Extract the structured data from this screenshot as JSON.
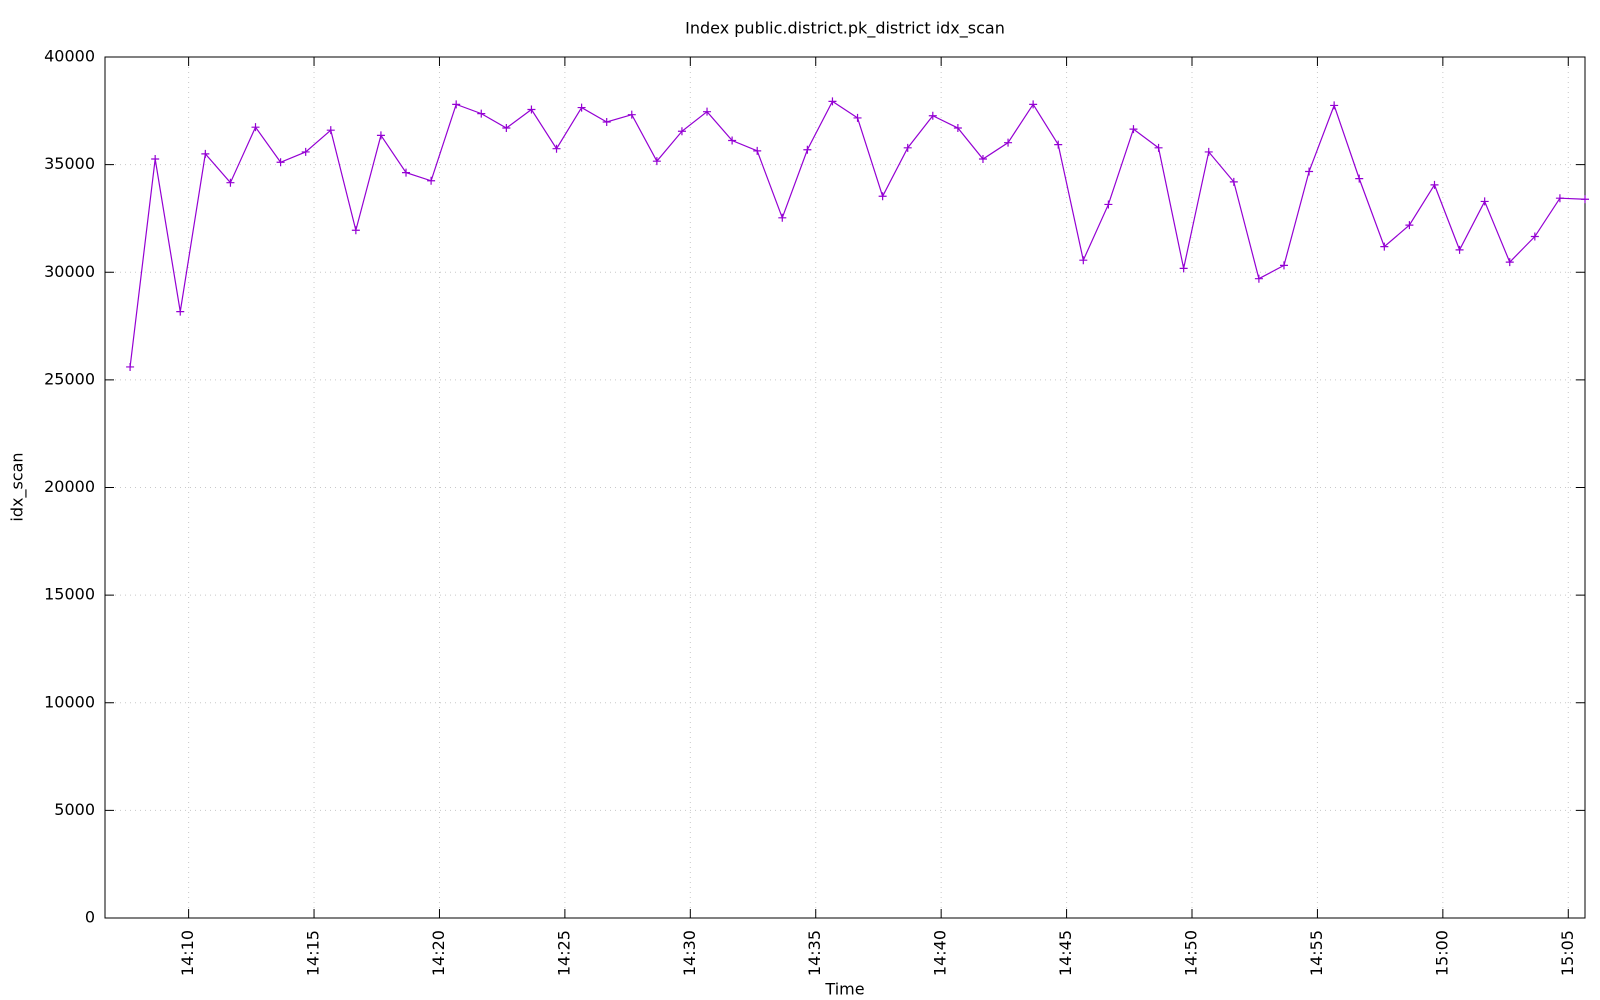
{
  "chart_data": {
    "type": "line",
    "title": "Index public.district.pk_district idx_scan",
    "x_label": "Time",
    "y_label": "idx_scan",
    "x": [
      50860,
      50920,
      50980,
      51040,
      51100,
      51160,
      51220,
      51280,
      51340,
      51400,
      51460,
      51520,
      51580,
      51640,
      51700,
      51760,
      51820,
      51880,
      51940,
      52000,
      52060,
      52120,
      52180,
      52240,
      52300,
      52360,
      52420,
      52480,
      52540,
      52600,
      52660,
      52720,
      52780,
      52840,
      52900,
      52960,
      53020,
      53080,
      53140,
      53200,
      53260,
      53320,
      53380,
      53440,
      53500,
      53560,
      53620,
      53680,
      53740,
      53800,
      53860,
      53920,
      53980,
      54040,
      54100,
      54160,
      54220,
      54280,
      54340
    ],
    "series": [
      {
        "name": "idx_scan",
        "color": "#9400d3",
        "values": [
          25600,
          35260,
          28170,
          35500,
          34160,
          36740,
          35110,
          35590,
          36600,
          31950,
          36360,
          34630,
          34250,
          37800,
          37370,
          36700,
          37560,
          35740,
          37650,
          36980,
          37320,
          35160,
          36550,
          37460,
          36120,
          35640,
          32530,
          35690,
          37940,
          37170,
          33530,
          35780,
          37270,
          36700,
          35260,
          36020,
          37800,
          35930,
          30560,
          33150,
          36650,
          35780,
          30180,
          35590,
          34200,
          29700,
          30320,
          34680,
          37750,
          34350,
          31190,
          32190,
          34060,
          31040,
          33290,
          30470,
          31660,
          33440,
          33390
        ]
      }
    ],
    "xlim": [
      50800,
      54340
    ],
    "xticks": [
      {
        "value": 51000,
        "label": "14:10"
      },
      {
        "value": 51300,
        "label": "14:15"
      },
      {
        "value": 51600,
        "label": "14:20"
      },
      {
        "value": 51900,
        "label": "14:25"
      },
      {
        "value": 52200,
        "label": "14:30"
      },
      {
        "value": 52500,
        "label": "14:35"
      },
      {
        "value": 52800,
        "label": "14:40"
      },
      {
        "value": 53100,
        "label": "14:45"
      },
      {
        "value": 53400,
        "label": "14:50"
      },
      {
        "value": 53700,
        "label": "14:55"
      },
      {
        "value": 54000,
        "label": "15:00"
      },
      {
        "value": 54300,
        "label": "15:05"
      }
    ],
    "ylim": [
      0,
      40000
    ],
    "yticks": [
      0,
      5000,
      10000,
      15000,
      20000,
      25000,
      30000,
      35000,
      40000
    ],
    "grid": true
  }
}
